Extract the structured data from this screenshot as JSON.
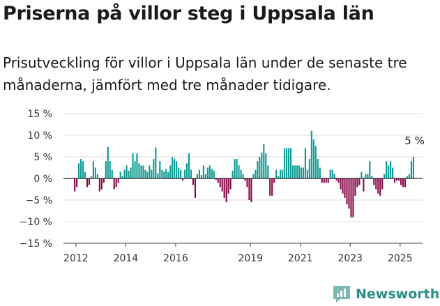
{
  "header": {
    "title": "Priserna på villor steg i Uppsala län",
    "subtitle": "Prisutveckling för villor i Uppsala län under de senaste tre månaderna, jämfört med tre månader tidigare."
  },
  "brand": {
    "name": "Newsworthy"
  },
  "colors": {
    "positive": "#0f9b95",
    "negative": "#8a0b4b",
    "grid": "#dcdcdc",
    "axis": "#444444"
  },
  "chart_data": {
    "type": "bar",
    "unit": "%",
    "ylim": [
      -15,
      15
    ],
    "yticks": [
      15,
      10,
      5,
      0,
      -5,
      -10,
      -15
    ],
    "ytick_labels": [
      "15 %",
      "10 %",
      "5 %",
      "0 %",
      "−5 %",
      "−10 %",
      "−15 %"
    ],
    "xticks": [
      {
        "year": 2012,
        "label": "2012"
      },
      {
        "year": 2014,
        "label": "2014"
      },
      {
        "year": 2016,
        "label": "2016"
      },
      {
        "year": 2019,
        "label": "2019"
      },
      {
        "year": 2021,
        "label": "2021"
      },
      {
        "year": 2023,
        "label": "2023"
      },
      {
        "year": 2025,
        "label": "2025"
      }
    ],
    "x_start": 2011.95,
    "x_step": 0.0833333,
    "values": [
      -3,
      -2,
      3.5,
      4.5,
      4,
      1.5,
      -2,
      -1.5,
      0.5,
      4,
      2.5,
      1,
      -3,
      -2.5,
      -1,
      4,
      7.3,
      4,
      2,
      -2.5,
      -2,
      -1,
      1.5,
      0.5,
      2,
      3,
      1.8,
      2.5,
      5.8,
      4,
      5.8,
      3.5,
      3,
      3,
      2,
      1.5,
      3,
      2,
      4.5,
      7.2,
      1.2,
      4,
      2,
      1.6,
      2.2,
      1.5,
      3,
      5,
      4.5,
      4,
      2.5,
      2,
      -0.5,
      2,
      3.5,
      5.8,
      2,
      -1.5,
      -4.5,
      1,
      2,
      0.8,
      3,
      1,
      2.5,
      3,
      2.2,
      1.8,
      -0.3,
      -1,
      -2,
      -3,
      -4.5,
      -5.5,
      -3.5,
      -2.5,
      1.8,
      4.5,
      4.5,
      3,
      2,
      1,
      -0.5,
      -2,
      -5,
      -5.5,
      1,
      2,
      4,
      5,
      6,
      8,
      5.8,
      3,
      -4,
      -4,
      -1,
      2,
      0.5,
      2,
      2,
      7,
      7,
      7,
      7,
      3,
      3,
      3,
      3,
      2.5,
      2.5,
      7,
      2,
      4.5,
      11,
      9,
      7.5,
      4.5,
      2.5,
      -1,
      -1,
      -1,
      -1,
      2,
      2,
      1,
      -0.5,
      -1,
      -2.5,
      -3.5,
      -4.5,
      -6,
      -7,
      -9,
      -9,
      -4,
      -2,
      -1.5,
      1.5,
      -3,
      1,
      1,
      4,
      0.5,
      -1.5,
      -2.5,
      -3.5,
      -4,
      -2.5,
      1,
      4,
      3,
      4,
      2.5,
      -1,
      -0.5,
      -0.5,
      -1.5,
      -2,
      -2,
      0.5,
      1,
      4,
      5
    ],
    "annotations": [
      {
        "text": "5 %",
        "value": 5
      }
    ]
  }
}
